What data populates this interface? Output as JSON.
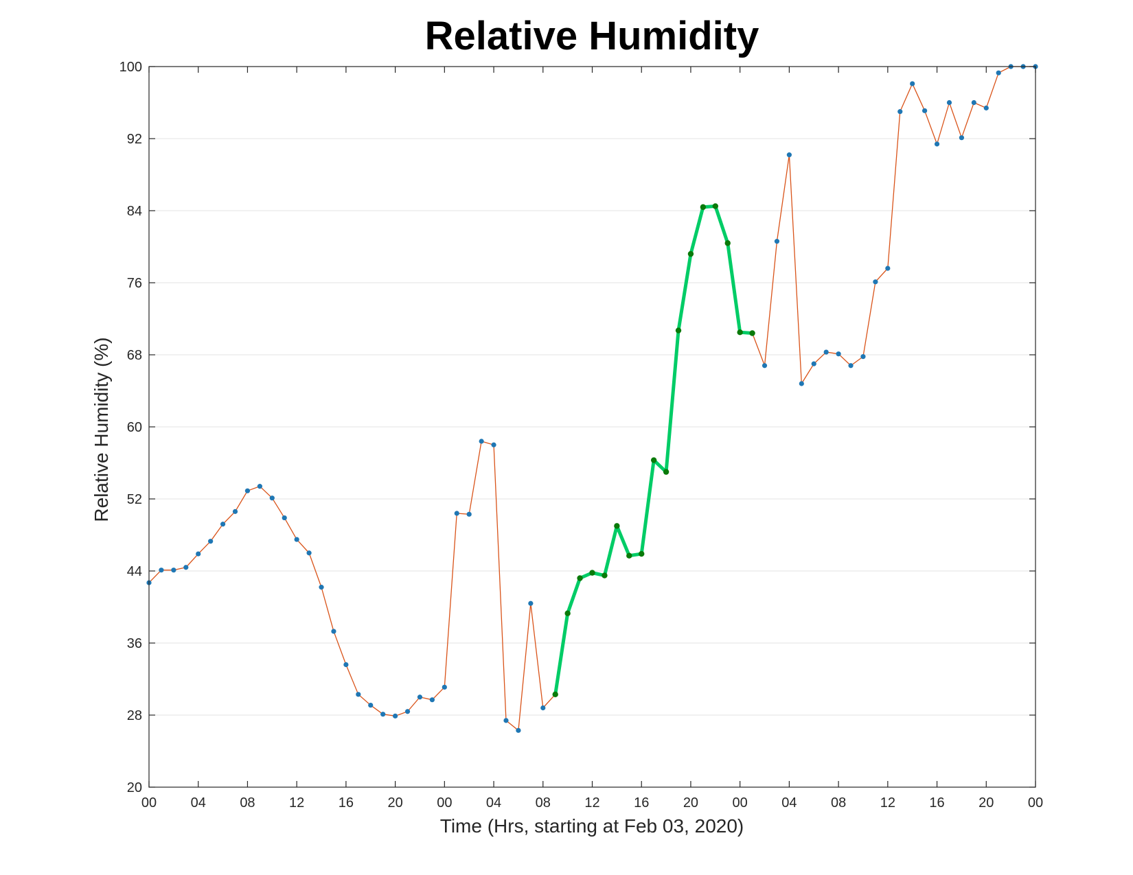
{
  "chart_data": {
    "type": "line",
    "title": "Relative Humidity",
    "xlabel": "Time (Hrs, starting at Feb 03, 2020)",
    "ylabel": "Relative Humidity (%)",
    "x_unit": "hours",
    "xlim": [
      0,
      72
    ],
    "ylim": [
      20,
      100
    ],
    "x_ticks": [
      0,
      4,
      8,
      12,
      16,
      20,
      24,
      28,
      32,
      36,
      40,
      44,
      48,
      52,
      56,
      60,
      64,
      68,
      72
    ],
    "x_tick_labels": [
      "00",
      "04",
      "08",
      "12",
      "16",
      "20",
      "00",
      "04",
      "08",
      "12",
      "16",
      "20",
      "00",
      "04",
      "08",
      "12",
      "16",
      "20",
      "00"
    ],
    "y_ticks": [
      20,
      28,
      36,
      44,
      52,
      60,
      68,
      76,
      84,
      92,
      100
    ],
    "y_tick_labels": [
      "20",
      "28",
      "36",
      "44",
      "52",
      "60",
      "68",
      "76",
      "84",
      "92",
      "100"
    ],
    "grid": "horizontal",
    "legend": "none",
    "series": [
      {
        "x": [
          0,
          1,
          2,
          3,
          4,
          5,
          6,
          7,
          8,
          9,
          10,
          11,
          12,
          13,
          14,
          15,
          16,
          17,
          18,
          19,
          20,
          21,
          22,
          23,
          24,
          25,
          26,
          27,
          28,
          29,
          30,
          31,
          32,
          33,
          34,
          35,
          36,
          37,
          38,
          39,
          40,
          41,
          42,
          43,
          44,
          45,
          46,
          47,
          48,
          49,
          50,
          51,
          52,
          53,
          54,
          55,
          56,
          57,
          58,
          59,
          60,
          61,
          62,
          63,
          64,
          65,
          66,
          67,
          68,
          69,
          70,
          71,
          72
        ],
        "values": [
          42.7,
          44.1,
          44.1,
          44.4,
          45.9,
          47.3,
          49.2,
          50.6,
          52.9,
          53.4,
          52.1,
          49.9,
          47.5,
          46.0,
          42.2,
          37.3,
          33.6,
          30.3,
          29.1,
          28.1,
          27.9,
          28.4,
          30.0,
          29.7,
          31.1,
          50.4,
          50.3,
          58.4,
          58.0,
          27.4,
          26.3,
          40.4,
          28.8,
          30.3,
          39.3,
          43.2,
          43.8,
          43.5,
          49.0,
          45.7,
          45.9,
          56.3,
          55.0,
          70.7,
          79.2,
          84.4,
          84.5,
          80.4,
          70.5,
          70.4,
          66.8,
          80.6,
          90.2,
          64.8,
          67.0,
          68.3,
          68.1,
          66.8,
          67.8,
          76.1,
          77.6,
          95.0,
          98.1,
          95.1,
          91.4,
          96.0,
          92.1,
          96.0,
          95.4,
          99.3,
          100.0,
          100.0,
          100.0
        ],
        "line_color": "#d95319",
        "marker_color": "#1f77b4"
      },
      {
        "highlight_range": [
          33,
          49
        ],
        "line_color": "#00cc66",
        "marker_color": "#0a7a0a"
      }
    ]
  }
}
